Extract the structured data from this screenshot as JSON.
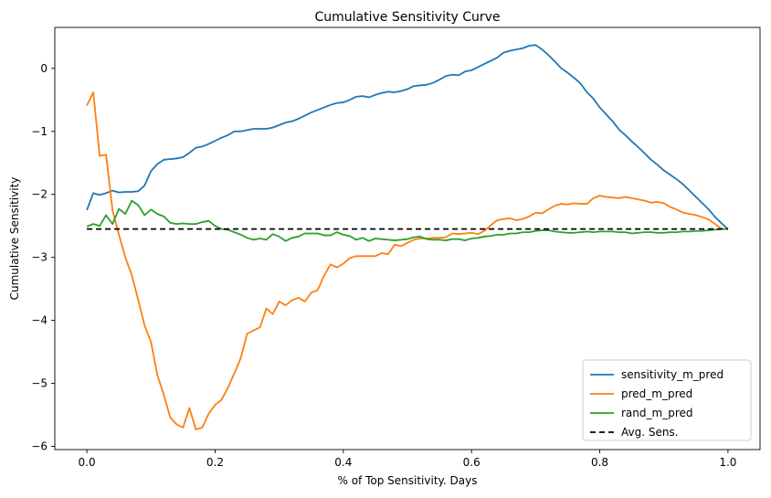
{
  "chart_data": {
    "type": "line",
    "title": "Cumulative Sensitivity Curve",
    "xlabel": "% of Top Sensitivity. Days",
    "ylabel": "Cumulative Sensitivity",
    "xlim": [
      -0.05,
      1.05
    ],
    "ylim": [
      -6.05,
      0.65
    ],
    "xticks": [
      0.0,
      0.2,
      0.4,
      0.6,
      0.8,
      1.0
    ],
    "xtick_labels": [
      "0.0",
      "0.2",
      "0.4",
      "0.6",
      "0.8",
      "1.0"
    ],
    "yticks": [
      0,
      -1,
      -2,
      -3,
      -4,
      -5,
      -6
    ],
    "ytick_labels": [
      "0",
      "−1",
      "−2",
      "−3",
      "−4",
      "−5",
      "−6"
    ],
    "grid": false,
    "legend_position": "lower-right",
    "series": [
      {
        "name": "sensitivity_m_pred",
        "color": "#1f77b4",
        "style": "solid",
        "points": [
          [
            0.0,
            -2.25
          ],
          [
            0.01,
            -1.98
          ],
          [
            0.02,
            -2.01
          ],
          [
            0.03,
            -1.98
          ],
          [
            0.04,
            -1.94
          ],
          [
            0.05,
            -1.97
          ],
          [
            0.06,
            -1.96
          ],
          [
            0.07,
            -1.96
          ],
          [
            0.08,
            -1.95
          ],
          [
            0.09,
            -1.86
          ],
          [
            0.1,
            -1.63
          ],
          [
            0.11,
            -1.52
          ],
          [
            0.12,
            -1.45
          ],
          [
            0.13,
            -1.44
          ],
          [
            0.14,
            -1.43
          ],
          [
            0.15,
            -1.41
          ],
          [
            0.16,
            -1.34
          ],
          [
            0.17,
            -1.26
          ],
          [
            0.18,
            -1.24
          ],
          [
            0.19,
            -1.2
          ],
          [
            0.2,
            -1.15
          ],
          [
            0.21,
            -1.1
          ],
          [
            0.22,
            -1.06
          ],
          [
            0.23,
            -1.0
          ],
          [
            0.24,
            -1.0
          ],
          [
            0.25,
            -0.98
          ],
          [
            0.26,
            -0.96
          ],
          [
            0.27,
            -0.96
          ],
          [
            0.28,
            -0.96
          ],
          [
            0.29,
            -0.94
          ],
          [
            0.3,
            -0.9
          ],
          [
            0.31,
            -0.86
          ],
          [
            0.32,
            -0.84
          ],
          [
            0.33,
            -0.8
          ],
          [
            0.34,
            -0.75
          ],
          [
            0.35,
            -0.7
          ],
          [
            0.36,
            -0.66
          ],
          [
            0.37,
            -0.62
          ],
          [
            0.38,
            -0.58
          ],
          [
            0.39,
            -0.55
          ],
          [
            0.4,
            -0.54
          ],
          [
            0.41,
            -0.5
          ],
          [
            0.42,
            -0.45
          ],
          [
            0.43,
            -0.44
          ],
          [
            0.44,
            -0.46
          ],
          [
            0.45,
            -0.42
          ],
          [
            0.46,
            -0.39
          ],
          [
            0.47,
            -0.37
          ],
          [
            0.48,
            -0.38
          ],
          [
            0.49,
            -0.36
          ],
          [
            0.5,
            -0.33
          ],
          [
            0.51,
            -0.28
          ],
          [
            0.52,
            -0.27
          ],
          [
            0.53,
            -0.26
          ],
          [
            0.54,
            -0.23
          ],
          [
            0.55,
            -0.18
          ],
          [
            0.56,
            -0.12
          ],
          [
            0.57,
            -0.1
          ],
          [
            0.58,
            -0.11
          ],
          [
            0.59,
            -0.05
          ],
          [
            0.6,
            -0.03
          ],
          [
            0.61,
            0.02
          ],
          [
            0.62,
            0.07
          ],
          [
            0.63,
            0.12
          ],
          [
            0.64,
            0.17
          ],
          [
            0.65,
            0.25
          ],
          [
            0.66,
            0.28
          ],
          [
            0.67,
            0.3
          ],
          [
            0.68,
            0.32
          ],
          [
            0.69,
            0.36
          ],
          [
            0.7,
            0.37
          ],
          [
            0.71,
            0.3
          ],
          [
            0.72,
            0.21
          ],
          [
            0.73,
            0.11
          ],
          [
            0.74,
            0.0
          ],
          [
            0.75,
            -0.07
          ],
          [
            0.76,
            -0.15
          ],
          [
            0.77,
            -0.24
          ],
          [
            0.78,
            -0.38
          ],
          [
            0.79,
            -0.48
          ],
          [
            0.8,
            -0.62
          ],
          [
            0.81,
            -0.73
          ],
          [
            0.82,
            -0.84
          ],
          [
            0.83,
            -0.97
          ],
          [
            0.84,
            -1.06
          ],
          [
            0.85,
            -1.16
          ],
          [
            0.86,
            -1.25
          ],
          [
            0.87,
            -1.35
          ],
          [
            0.88,
            -1.45
          ],
          [
            0.89,
            -1.53
          ],
          [
            0.9,
            -1.62
          ],
          [
            0.91,
            -1.69
          ],
          [
            0.92,
            -1.76
          ],
          [
            0.93,
            -1.84
          ],
          [
            0.94,
            -1.94
          ],
          [
            0.95,
            -2.04
          ],
          [
            0.96,
            -2.14
          ],
          [
            0.97,
            -2.24
          ],
          [
            0.98,
            -2.36
          ],
          [
            0.99,
            -2.46
          ],
          [
            1.0,
            -2.55
          ]
        ]
      },
      {
        "name": "pred_m_pred",
        "color": "#ff7f0e",
        "style": "solid",
        "points": [
          [
            0.0,
            -0.59
          ],
          [
            0.01,
            -0.38
          ],
          [
            0.02,
            -1.39
          ],
          [
            0.03,
            -1.37
          ],
          [
            0.04,
            -2.25
          ],
          [
            0.05,
            -2.64
          ],
          [
            0.06,
            -3.0
          ],
          [
            0.07,
            -3.28
          ],
          [
            0.08,
            -3.67
          ],
          [
            0.09,
            -4.08
          ],
          [
            0.1,
            -4.34
          ],
          [
            0.11,
            -4.87
          ],
          [
            0.12,
            -5.18
          ],
          [
            0.13,
            -5.54
          ],
          [
            0.14,
            -5.65
          ],
          [
            0.15,
            -5.7
          ],
          [
            0.16,
            -5.39
          ],
          [
            0.17,
            -5.73
          ],
          [
            0.18,
            -5.7
          ],
          [
            0.19,
            -5.48
          ],
          [
            0.2,
            -5.34
          ],
          [
            0.21,
            -5.26
          ],
          [
            0.22,
            -5.07
          ],
          [
            0.23,
            -4.84
          ],
          [
            0.24,
            -4.6
          ],
          [
            0.25,
            -4.21
          ],
          [
            0.26,
            -4.16
          ],
          [
            0.27,
            -4.11
          ],
          [
            0.28,
            -3.81
          ],
          [
            0.29,
            -3.9
          ],
          [
            0.3,
            -3.7
          ],
          [
            0.31,
            -3.76
          ],
          [
            0.32,
            -3.68
          ],
          [
            0.33,
            -3.64
          ],
          [
            0.34,
            -3.7
          ],
          [
            0.35,
            -3.56
          ],
          [
            0.36,
            -3.52
          ],
          [
            0.37,
            -3.29
          ],
          [
            0.38,
            -3.11
          ],
          [
            0.39,
            -3.16
          ],
          [
            0.4,
            -3.1
          ],
          [
            0.41,
            -3.01
          ],
          [
            0.42,
            -2.98
          ],
          [
            0.43,
            -2.98
          ],
          [
            0.44,
            -2.98
          ],
          [
            0.45,
            -2.98
          ],
          [
            0.46,
            -2.93
          ],
          [
            0.47,
            -2.95
          ],
          [
            0.48,
            -2.8
          ],
          [
            0.49,
            -2.82
          ],
          [
            0.5,
            -2.77
          ],
          [
            0.51,
            -2.72
          ],
          [
            0.52,
            -2.7
          ],
          [
            0.53,
            -2.7
          ],
          [
            0.54,
            -2.69
          ],
          [
            0.55,
            -2.69
          ],
          [
            0.56,
            -2.68
          ],
          [
            0.57,
            -2.62
          ],
          [
            0.58,
            -2.63
          ],
          [
            0.59,
            -2.62
          ],
          [
            0.6,
            -2.61
          ],
          [
            0.61,
            -2.63
          ],
          [
            0.62,
            -2.58
          ],
          [
            0.63,
            -2.49
          ],
          [
            0.64,
            -2.41
          ],
          [
            0.65,
            -2.39
          ],
          [
            0.66,
            -2.38
          ],
          [
            0.67,
            -2.41
          ],
          [
            0.68,
            -2.39
          ],
          [
            0.69,
            -2.35
          ],
          [
            0.7,
            -2.29
          ],
          [
            0.71,
            -2.3
          ],
          [
            0.72,
            -2.24
          ],
          [
            0.73,
            -2.18
          ],
          [
            0.74,
            -2.15
          ],
          [
            0.75,
            -2.16
          ],
          [
            0.76,
            -2.14
          ],
          [
            0.77,
            -2.15
          ],
          [
            0.78,
            -2.15
          ],
          [
            0.79,
            -2.06
          ],
          [
            0.8,
            -2.02
          ],
          [
            0.81,
            -2.04
          ],
          [
            0.82,
            -2.05
          ],
          [
            0.83,
            -2.06
          ],
          [
            0.84,
            -2.04
          ],
          [
            0.85,
            -2.06
          ],
          [
            0.86,
            -2.08
          ],
          [
            0.87,
            -2.1
          ],
          [
            0.88,
            -2.13
          ],
          [
            0.89,
            -2.12
          ],
          [
            0.9,
            -2.14
          ],
          [
            0.91,
            -2.2
          ],
          [
            0.92,
            -2.24
          ],
          [
            0.93,
            -2.29
          ],
          [
            0.94,
            -2.31
          ],
          [
            0.95,
            -2.33
          ],
          [
            0.96,
            -2.36
          ],
          [
            0.97,
            -2.4
          ],
          [
            0.98,
            -2.47
          ],
          [
            0.99,
            -2.55
          ],
          [
            1.0,
            -2.55
          ]
        ]
      },
      {
        "name": "rand_m_pred",
        "color": "#2ca02c",
        "style": "solid",
        "points": [
          [
            0.0,
            -2.51
          ],
          [
            0.01,
            -2.47
          ],
          [
            0.02,
            -2.5
          ],
          [
            0.03,
            -2.33
          ],
          [
            0.04,
            -2.47
          ],
          [
            0.05,
            -2.23
          ],
          [
            0.06,
            -2.31
          ],
          [
            0.07,
            -2.1
          ],
          [
            0.08,
            -2.17
          ],
          [
            0.09,
            -2.33
          ],
          [
            0.1,
            -2.24
          ],
          [
            0.11,
            -2.31
          ],
          [
            0.12,
            -2.35
          ],
          [
            0.13,
            -2.45
          ],
          [
            0.14,
            -2.47
          ],
          [
            0.15,
            -2.46
          ],
          [
            0.16,
            -2.47
          ],
          [
            0.17,
            -2.47
          ],
          [
            0.18,
            -2.44
          ],
          [
            0.19,
            -2.42
          ],
          [
            0.2,
            -2.5
          ],
          [
            0.21,
            -2.55
          ],
          [
            0.22,
            -2.56
          ],
          [
            0.23,
            -2.6
          ],
          [
            0.24,
            -2.64
          ],
          [
            0.25,
            -2.69
          ],
          [
            0.26,
            -2.72
          ],
          [
            0.27,
            -2.7
          ],
          [
            0.28,
            -2.72
          ],
          [
            0.29,
            -2.63
          ],
          [
            0.3,
            -2.67
          ],
          [
            0.31,
            -2.74
          ],
          [
            0.32,
            -2.69
          ],
          [
            0.33,
            -2.67
          ],
          [
            0.34,
            -2.62
          ],
          [
            0.35,
            -2.62
          ],
          [
            0.36,
            -2.62
          ],
          [
            0.37,
            -2.65
          ],
          [
            0.38,
            -2.65
          ],
          [
            0.39,
            -2.6
          ],
          [
            0.4,
            -2.64
          ],
          [
            0.41,
            -2.66
          ],
          [
            0.42,
            -2.72
          ],
          [
            0.43,
            -2.69
          ],
          [
            0.44,
            -2.74
          ],
          [
            0.45,
            -2.7
          ],
          [
            0.46,
            -2.71
          ],
          [
            0.47,
            -2.72
          ],
          [
            0.48,
            -2.73
          ],
          [
            0.49,
            -2.72
          ],
          [
            0.5,
            -2.71
          ],
          [
            0.51,
            -2.68
          ],
          [
            0.52,
            -2.67
          ],
          [
            0.53,
            -2.71
          ],
          [
            0.54,
            -2.72
          ],
          [
            0.55,
            -2.72
          ],
          [
            0.56,
            -2.73
          ],
          [
            0.57,
            -2.71
          ],
          [
            0.58,
            -2.71
          ],
          [
            0.59,
            -2.73
          ],
          [
            0.6,
            -2.7
          ],
          [
            0.61,
            -2.69
          ],
          [
            0.62,
            -2.67
          ],
          [
            0.63,
            -2.66
          ],
          [
            0.64,
            -2.64
          ],
          [
            0.65,
            -2.64
          ],
          [
            0.66,
            -2.62
          ],
          [
            0.67,
            -2.62
          ],
          [
            0.68,
            -2.6
          ],
          [
            0.69,
            -2.6
          ],
          [
            0.7,
            -2.58
          ],
          [
            0.71,
            -2.57
          ],
          [
            0.72,
            -2.57
          ],
          [
            0.73,
            -2.59
          ],
          [
            0.74,
            -2.6
          ],
          [
            0.75,
            -2.61
          ],
          [
            0.76,
            -2.61
          ],
          [
            0.77,
            -2.6
          ],
          [
            0.78,
            -2.59
          ],
          [
            0.79,
            -2.6
          ],
          [
            0.8,
            -2.59
          ],
          [
            0.81,
            -2.59
          ],
          [
            0.82,
            -2.59
          ],
          [
            0.83,
            -2.6
          ],
          [
            0.84,
            -2.6
          ],
          [
            0.85,
            -2.62
          ],
          [
            0.86,
            -2.61
          ],
          [
            0.87,
            -2.6
          ],
          [
            0.88,
            -2.6
          ],
          [
            0.89,
            -2.61
          ],
          [
            0.9,
            -2.61
          ],
          [
            0.91,
            -2.6
          ],
          [
            0.92,
            -2.6
          ],
          [
            0.93,
            -2.59
          ],
          [
            0.94,
            -2.59
          ],
          [
            0.95,
            -2.58
          ],
          [
            0.96,
            -2.58
          ],
          [
            0.97,
            -2.57
          ],
          [
            0.98,
            -2.56
          ],
          [
            0.99,
            -2.55
          ],
          [
            1.0,
            -2.55
          ]
        ]
      },
      {
        "name": "Avg. Sens.",
        "color": "#000000",
        "style": "dashed",
        "points": [
          [
            0.0,
            -2.55
          ],
          [
            1.0,
            -2.55
          ]
        ]
      }
    ]
  }
}
